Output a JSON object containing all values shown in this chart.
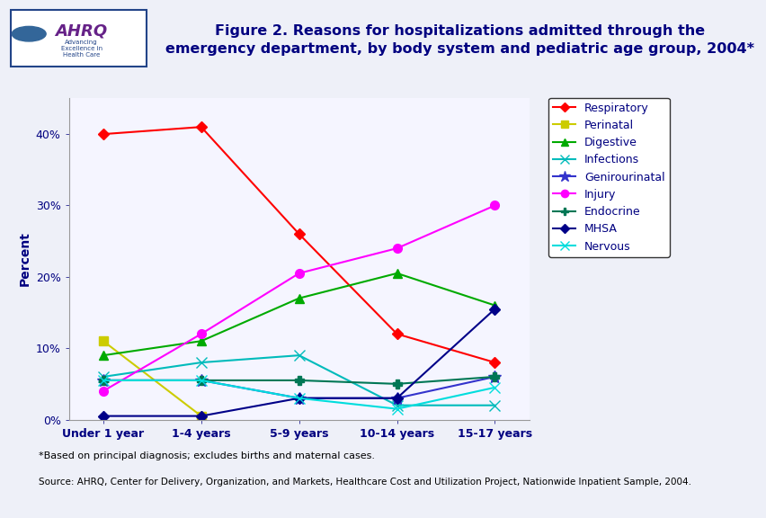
{
  "title": "Figure 2. Reasons for hospitalizations admitted through the\nemergency department, by body system and pediatric age group, 2004*",
  "ylabel": "Percent",
  "footnote1": "*Based on principal diagnosis; excludes births and maternal cases.",
  "footnote2": "Source: AHRQ, Center for Delivery, Organization, and Markets, Healthcare Cost and Utilization Project, Nationwide Inpatient Sample, 2004.",
  "x_labels": [
    "Under 1 year",
    "1-4 years",
    "5-9 years",
    "10-14 years",
    "15-17 years"
  ],
  "ylim": [
    0,
    45
  ],
  "yticks": [
    0,
    10,
    20,
    30,
    40
  ],
  "series": [
    {
      "name": "Respiratory",
      "color": "#FF0000",
      "marker": "D",
      "values": [
        40,
        41,
        26,
        12,
        8
      ]
    },
    {
      "name": "Perinatal",
      "color": "#CCCC00",
      "marker": "s",
      "values": [
        11,
        0.5,
        null,
        null,
        null
      ]
    },
    {
      "name": "Digestive",
      "color": "#00AA00",
      "marker": "^",
      "values": [
        9,
        11,
        17,
        20.5,
        16
      ]
    },
    {
      "name": "Infections",
      "color": "#00BBBB",
      "marker": "x",
      "values": [
        6,
        8,
        9,
        2,
        2
      ]
    },
    {
      "name": "Genirourinatal",
      "color": "#3333CC",
      "marker": "*",
      "values": [
        5.5,
        5.5,
        3,
        3,
        6
      ]
    },
    {
      "name": "Injury",
      "color": "#FF00FF",
      "marker": "o",
      "values": [
        4,
        12,
        20.5,
        24,
        30
      ]
    },
    {
      "name": "Endocrine",
      "color": "#007755",
      "marker": "P",
      "values": [
        5.5,
        5.5,
        5.5,
        5,
        6
      ]
    },
    {
      "name": "MHSA",
      "color": "#000088",
      "marker": "D",
      "values": [
        0.5,
        0.5,
        3,
        3,
        15.5
      ]
    },
    {
      "name": "Nervous",
      "color": "#00DDDD",
      "marker": "x",
      "values": [
        5.5,
        5.5,
        3,
        1.5,
        4.5
      ]
    }
  ],
  "bg_color": "#EEF0F8",
  "plot_bg_color": "#F5F5FF",
  "title_color": "#000080",
  "divider_color": "#000080",
  "axis_color": "#555555",
  "tick_label_color": "#000080",
  "legend_text_color": "#000080",
  "header_box_color": "#CCCCDD"
}
